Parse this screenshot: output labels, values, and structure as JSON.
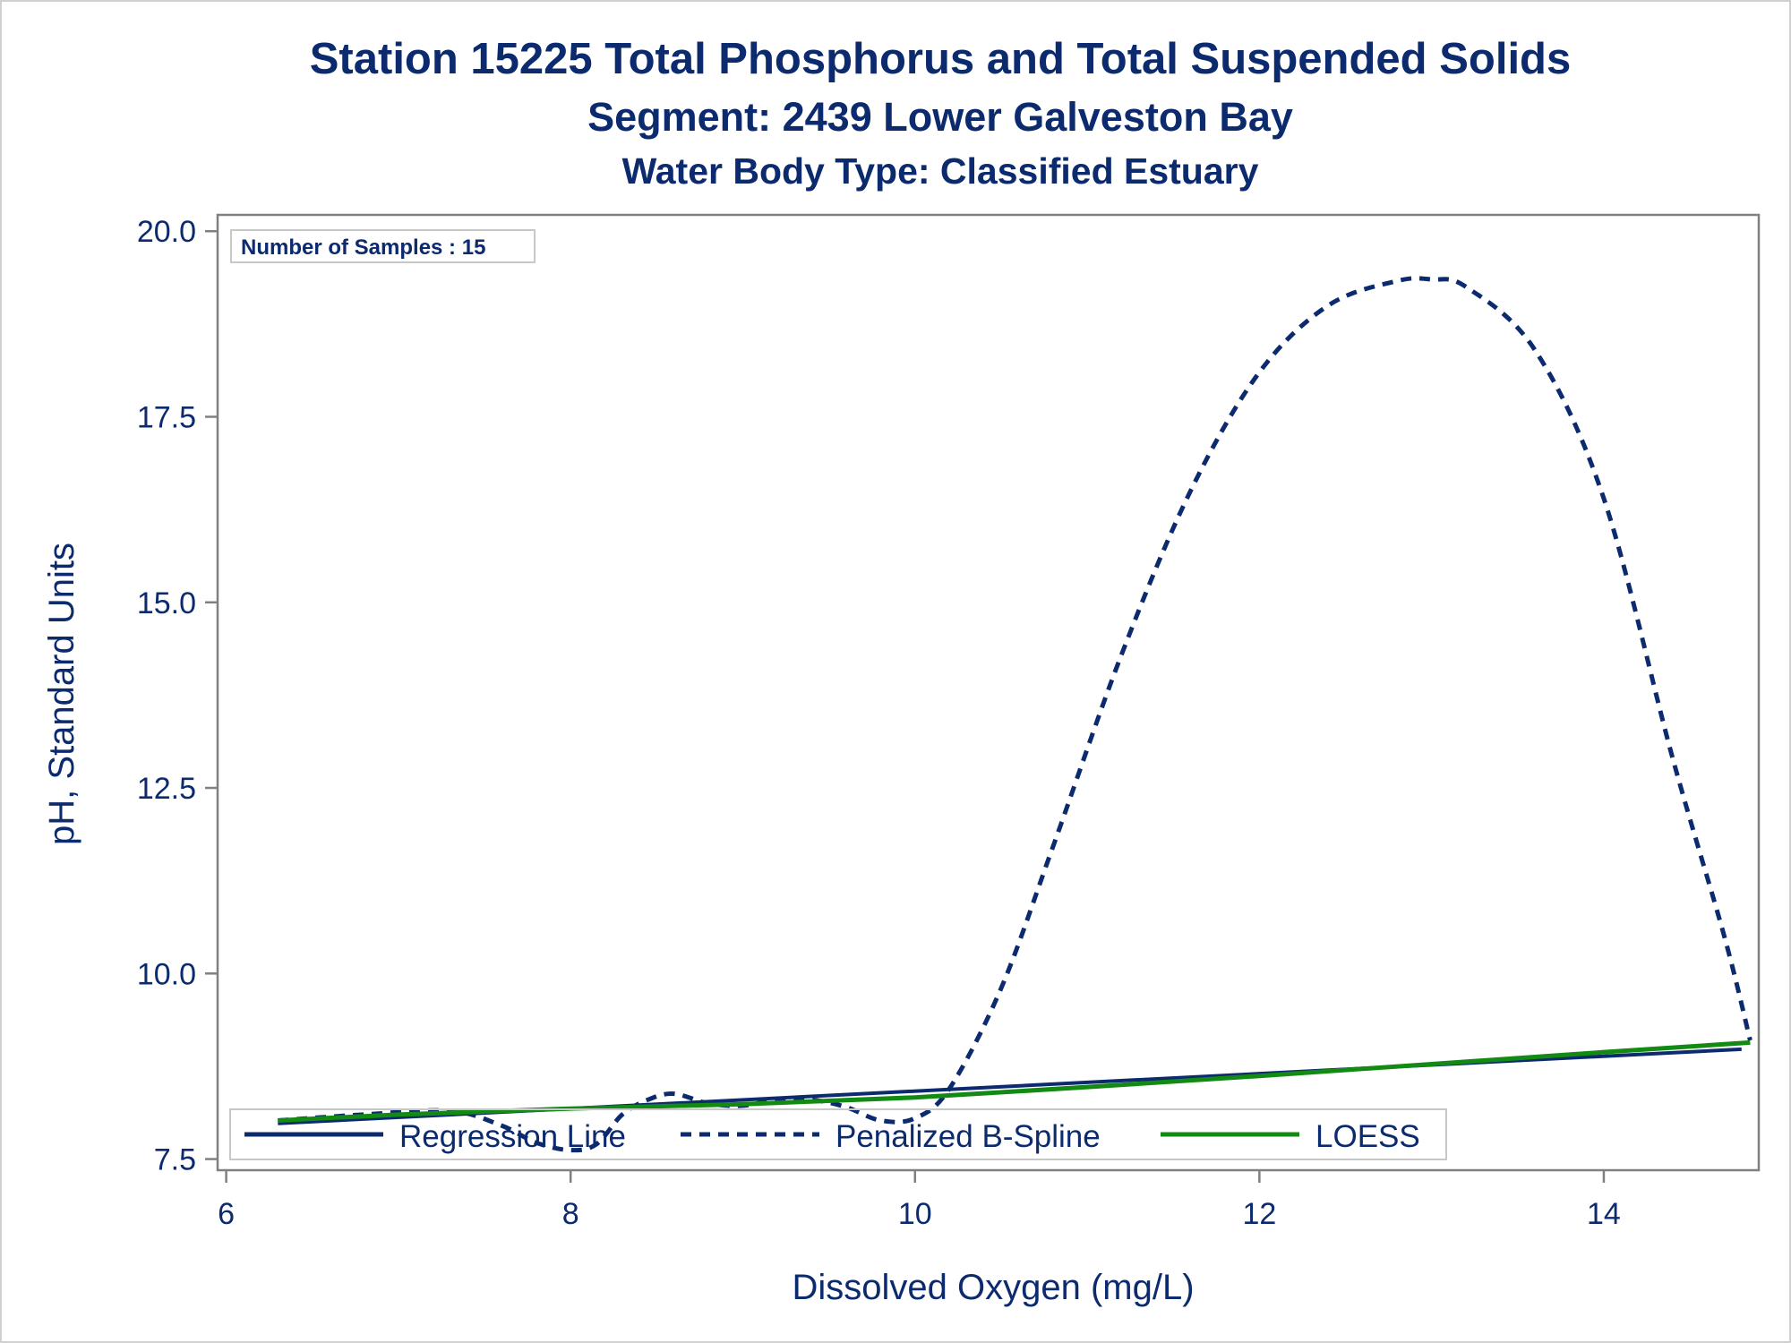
{
  "chart_data": {
    "type": "line",
    "title": "Station 15225  Total Phosphorus and Total Suspended Solids",
    "subtitle": "Segment: 2439  Lower Galveston Bay",
    "subtitle2": "Water Body Type: Classified Estuary",
    "xlabel": "Dissolved Oxygen (mg/L)",
    "ylabel": "pH, Standard Units",
    "xlim": [
      5.95,
      14.9
    ],
    "ylim": [
      7.35,
      20.22
    ],
    "xticks": [
      6,
      8,
      10,
      12,
      14
    ],
    "yticks": [
      7.5,
      10.0,
      12.5,
      15.0,
      17.5,
      20.0
    ],
    "xtick_labels": [
      "6",
      "8",
      "10",
      "12",
      "14"
    ],
    "ytick_labels": [
      "7.5",
      "10.0",
      "12.5",
      "15.0",
      "17.5",
      "20.0"
    ],
    "inset_label": "Number of Samples : 15",
    "legend_position": "bottom-inside",
    "grid": false,
    "colors": {
      "text": "#0c2a6e",
      "regression": "#0c2a6e",
      "spline": "#0c2a6e",
      "loess": "#138a13",
      "axis": "#808080"
    },
    "series": [
      {
        "name": "Regression Line",
        "style": "solid",
        "x": [
          6.3,
          14.8
        ],
        "y": [
          7.98,
          8.98
        ]
      },
      {
        "name": "Penalized B-Spline",
        "style": "dashed",
        "x": [
          6.3,
          6.8,
          7.3,
          7.6,
          7.8,
          8.0,
          8.15,
          8.3,
          8.45,
          8.6,
          8.8,
          9.0,
          9.2,
          9.4,
          9.6,
          9.8,
          10.0,
          10.2,
          10.5,
          10.8,
          11.2,
          11.6,
          12.0,
          12.4,
          12.8,
          13.0,
          13.2,
          13.6,
          14.0,
          14.4,
          14.7,
          14.85
        ],
        "y": [
          8.02,
          8.1,
          8.15,
          7.95,
          7.72,
          7.62,
          7.7,
          8.1,
          8.3,
          8.38,
          8.25,
          8.22,
          8.3,
          8.3,
          8.2,
          8.02,
          8.05,
          8.45,
          9.8,
          11.7,
          14.3,
          16.5,
          18.1,
          19.0,
          19.33,
          19.35,
          19.25,
          18.4,
          16.4,
          12.9,
          10.5,
          9.1
        ]
      },
      {
        "name": "LOESS",
        "style": "solid",
        "x": [
          6.3,
          7.0,
          8.0,
          9.0,
          10.0,
          11.0,
          12.0,
          13.0,
          14.0,
          14.85
        ],
        "y": [
          8.02,
          8.1,
          8.18,
          8.24,
          8.33,
          8.47,
          8.62,
          8.78,
          8.94,
          9.07
        ]
      }
    ]
  }
}
